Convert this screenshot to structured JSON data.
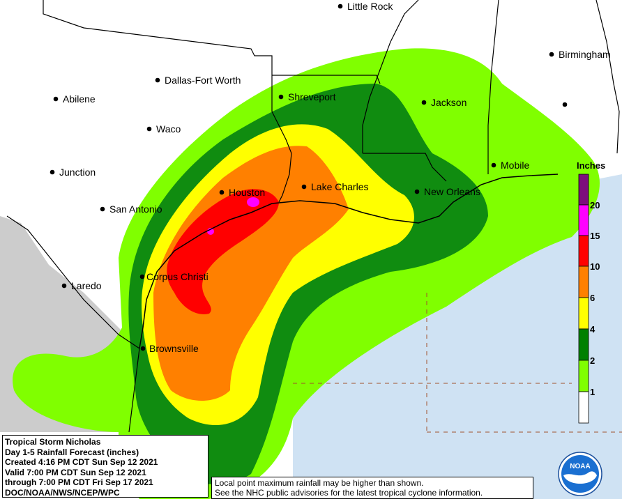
{
  "map": {
    "cities": [
      {
        "name": "Little Rock"
      },
      {
        "name": "Birmingham"
      },
      {
        "name": "Dallas-Fort Worth"
      },
      {
        "name": "Shreveport"
      },
      {
        "name": "Jackson"
      },
      {
        "name": "Abilene"
      },
      {
        "name": "Waco"
      },
      {
        "name": "Junction"
      },
      {
        "name": "Houston"
      },
      {
        "name": "Lake Charles"
      },
      {
        "name": "Mobile"
      },
      {
        "name": "New Orleans"
      },
      {
        "name": "San Antonio"
      },
      {
        "name": "Corpus Christi"
      },
      {
        "name": "Laredo"
      },
      {
        "name": "Brownsville"
      }
    ],
    "legend": {
      "title": "Inches",
      "ticks": [
        "20",
        "15",
        "10",
        "6",
        "4",
        "2",
        "1"
      ],
      "colors": [
        "#7d0e7d",
        "#ff00ff",
        "#ff0000",
        "#ff8000",
        "#ffff00",
        "#008000",
        "#80ff00",
        "#ffffff"
      ]
    },
    "colors": {
      "water": "#cfe2f3",
      "mexico": "#cccccc",
      "land": "#ffffff",
      "band_1": "#80ff00",
      "band_2": "#108c10",
      "band_4": "#ffff00",
      "band_6": "#ff8000",
      "band_10": "#ff0000",
      "band_15": "#ff00ff"
    }
  },
  "info": {
    "line1": "Tropical Storm Nicholas",
    "line2": "Day 1-5 Rainfall Forecast (inches)",
    "line3": "Created 4:16 PM CDT Sun Sep 12 2021",
    "line4": "Valid 7:00 PM CDT Sun Sep 12 2021",
    "line5": "through 7:00 PM CDT Fri Sep 17 2021",
    "line6": "DOC/NOAA/NWS/NCEP/WPC"
  },
  "disclaimer": {
    "line1": "Local point maximum rainfall may be higher than shown.",
    "line2": "See the NHC public advisories for the latest tropical cyclone information."
  },
  "logo": {
    "text": "NOAA"
  }
}
